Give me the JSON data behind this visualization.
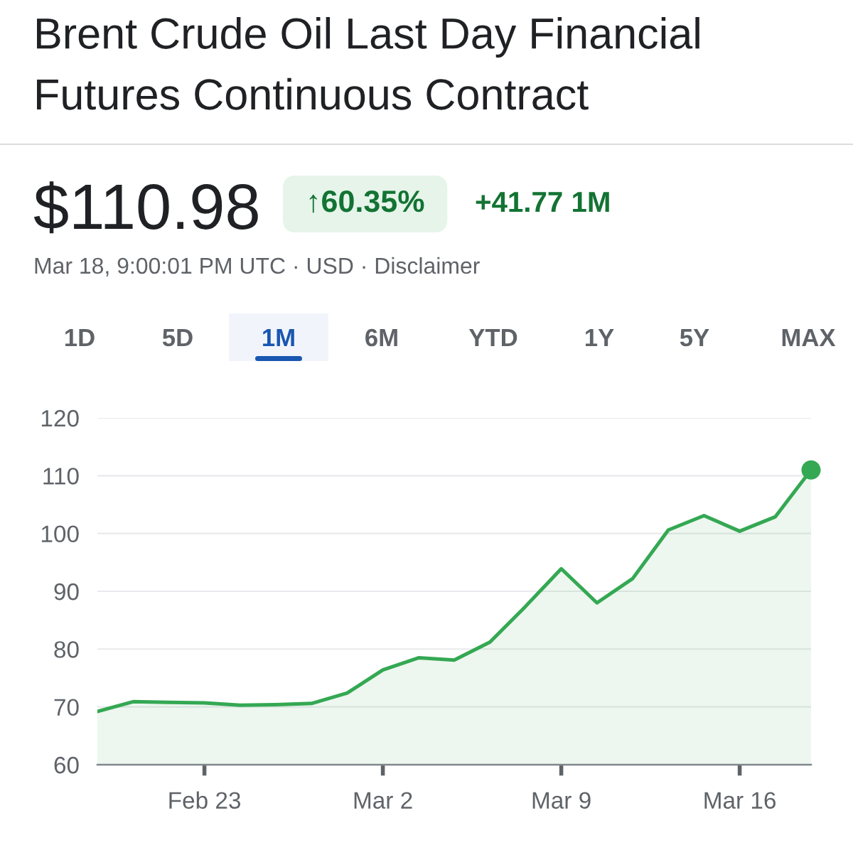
{
  "chart_data": {
    "type": "area",
    "title": "Brent Crude Oil Last Day Financial Futures Continuous Contract",
    "annotations": [
      "$110.98",
      "↑60.35%",
      "+41.77 1M",
      "Mar 18, 9:00:01 PM UTC · USD · Disclaimer",
      "1D",
      "5D",
      "1M",
      "6M",
      "YTD",
      "1Y",
      "5Y",
      "MAX"
    ],
    "categories": [
      null,
      null,
      null,
      "Feb 23",
      null,
      null,
      null,
      null,
      "Mar 2",
      null,
      null,
      null,
      null,
      "Mar 9",
      null,
      null,
      null,
      null,
      "Mar 16",
      null,
      null
    ],
    "series": [
      {
        "color": "#34a853",
        "values": [
          69.2,
          70.9,
          70.8,
          70.7,
          70.3,
          70.4,
          70.6,
          72.4,
          76.4,
          78.5,
          78.1,
          81.2,
          87.4,
          93.9,
          88.0,
          92.2,
          100.6,
          103.1,
          100.4,
          102.9,
          111.0
        ]
      },
      {
        "type": "scatter",
        "color": "#34a853",
        "marker": "circle",
        "values": [
          null,
          null,
          null,
          null,
          null,
          null,
          null,
          null,
          null,
          null,
          null,
          null,
          null,
          null,
          null,
          null,
          null,
          null,
          null,
          null,
          111.0
        ]
      }
    ],
    "ylim": [
      60,
      120
    ],
    "yticks": [
      60,
      70,
      80,
      90,
      100,
      110,
      120
    ],
    "grid": "y"
  }
}
